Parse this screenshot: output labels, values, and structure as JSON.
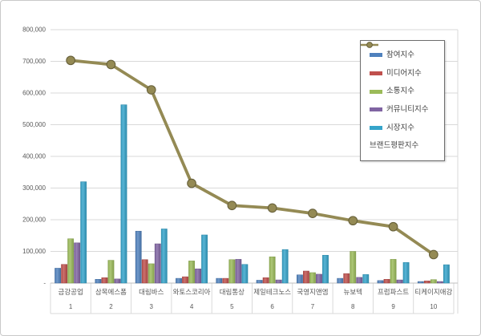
{
  "window": {
    "title": "브랜드평판지수 차트"
  },
  "theme": {
    "background": "#FFFFFF",
    "frame_border": "#C9C9C9",
    "grid_color": "#D9D9D9",
    "axis_line_color": "#BFBFBF",
    "text_color": "#595959",
    "legend_border": "#6E6E6E",
    "legend_text_color": "#404040"
  },
  "chart_data": {
    "type": "bar+line",
    "title": "",
    "xlabel": "",
    "ylabel": "",
    "categories": [
      "금강공업",
      "삼목에스폼",
      "대림바스",
      "와토스코리아",
      "대림통상",
      "제일테크노스",
      "국영지앤엠",
      "뉴보텍",
      "프럼파스트",
      "티케이지애강"
    ],
    "ranks": [
      "1",
      "2",
      "3",
      "4",
      "5",
      "6",
      "7",
      "8",
      "9",
      "10"
    ],
    "series": [
      {
        "name": "참여지수",
        "type": "bar",
        "color": "#4F81BD",
        "values": [
          47000,
          12000,
          164000,
          15000,
          15000,
          9000,
          26000,
          15000,
          8000,
          5000
        ]
      },
      {
        "name": "미디어지수",
        "type": "bar",
        "color": "#C0504D",
        "values": [
          59000,
          17000,
          74000,
          20000,
          15000,
          17000,
          38000,
          30000,
          12000,
          7000
        ]
      },
      {
        "name": "소통지수",
        "type": "bar",
        "color": "#9BBB59",
        "values": [
          140000,
          72000,
          61000,
          70000,
          74000,
          83000,
          33000,
          100000,
          75000,
          11000
        ]
      },
      {
        "name": "커뮤니티지수",
        "type": "bar",
        "color": "#8064A2",
        "values": [
          127000,
          13000,
          124000,
          45000,
          75000,
          10000,
          28000,
          18000,
          10000,
          5000
        ]
      },
      {
        "name": "시장지수",
        "type": "bar",
        "color": "#35A4CA",
        "values": [
          320000,
          563000,
          171000,
          152000,
          59000,
          106000,
          88000,
          27000,
          65000,
          58000
        ]
      },
      {
        "name": "브랜드평판지수",
        "type": "line",
        "color": "#948A54",
        "values": [
          703000,
          690000,
          610000,
          315000,
          245000,
          237000,
          220000,
          197000,
          178000,
          90000
        ]
      }
    ],
    "ylim": [
      0,
      800000
    ],
    "ytick_step": 100000,
    "ytick_labels": [
      "-",
      "100,000",
      "200,000",
      "300,000",
      "400,000",
      "500,000",
      "600,000",
      "700,000",
      "800,000"
    ],
    "grid": true,
    "legend_position": "inside-top-right"
  }
}
